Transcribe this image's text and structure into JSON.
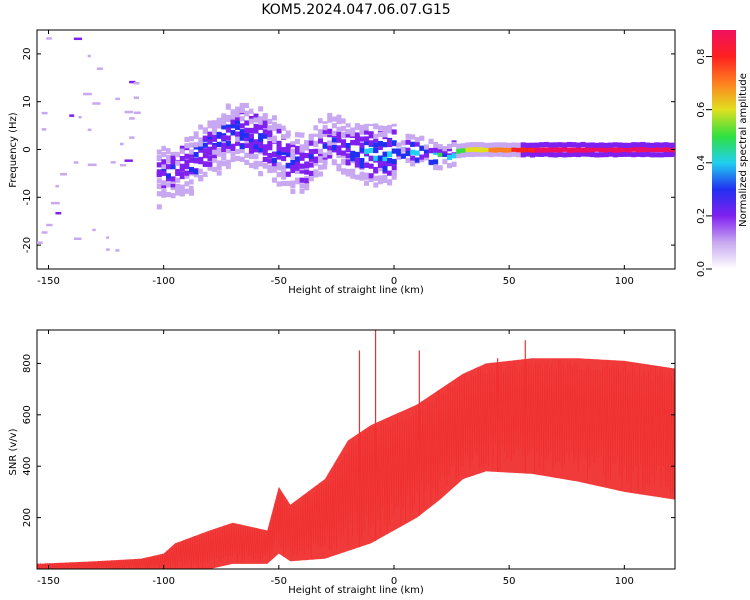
{
  "figure_title": "KOM5.2024.047.06.07.G15",
  "colors": {
    "snr_line": "#f03030",
    "spectro_light": "#c8a8f0",
    "spectro_purple": "#8020f0",
    "spectro_blue": "#2030f0",
    "spectro_cyan": "#20d0f0",
    "spectro_green": "#30e040",
    "spectro_yellow": "#e0e020",
    "spectro_red": "#ff2020"
  },
  "chart_data": [
    {
      "type": "heatmap",
      "xlabel": "Height of straight line (km)",
      "ylabel": "Frequency (Hz)",
      "xlim": [
        -155,
        122
      ],
      "ylim": [
        -25,
        25
      ],
      "xticks": [
        -150,
        -100,
        -50,
        0,
        50,
        100
      ],
      "yticks": [
        -20,
        -10,
        0,
        10,
        20
      ],
      "grid": false,
      "colorbar": {
        "label": "Normalized spectral amplitude",
        "range": [
          0,
          0.9
        ],
        "ticks": [
          0.0,
          0.2,
          0.4,
          0.6,
          0.8
        ],
        "colormap": [
          "#ffffff",
          "#c8a8f0",
          "#8020f0",
          "#2030f0",
          "#20d0f0",
          "#30e040",
          "#e0e020",
          "#ff8020",
          "#ff2020",
          "#f01060"
        ]
      },
      "ridge": [
        {
          "x": -100,
          "y": -5,
          "amp": 0.25
        },
        {
          "x": -90,
          "y": -3,
          "amp": 0.3
        },
        {
          "x": -80,
          "y": 1,
          "amp": 0.3
        },
        {
          "x": -70,
          "y": 4,
          "amp": 0.3
        },
        {
          "x": -60,
          "y": 2,
          "amp": 0.35
        },
        {
          "x": -50,
          "y": -1,
          "amp": 0.3
        },
        {
          "x": -40,
          "y": -3,
          "amp": 0.25
        },
        {
          "x": -30,
          "y": 2,
          "amp": 0.25
        },
        {
          "x": -20,
          "y": 0,
          "amp": 0.3
        },
        {
          "x": -5,
          "y": -1,
          "amp": 0.4
        },
        {
          "x": 5,
          "y": 0,
          "amp": 0.45
        },
        {
          "x": 20,
          "y": -1,
          "amp": 0.5
        },
        {
          "x": 30,
          "y": 0,
          "amp": 0.55
        },
        {
          "x": 45,
          "y": 0,
          "amp": 0.7
        },
        {
          "x": 60,
          "y": 0,
          "amp": 0.85
        },
        {
          "x": 80,
          "y": 0,
          "amp": 0.9
        },
        {
          "x": 100,
          "y": 0,
          "amp": 0.9
        },
        {
          "x": 122,
          "y": 0,
          "amp": 0.85
        }
      ]
    },
    {
      "type": "area",
      "xlabel": "Height of straight line (km)",
      "ylabel": "SNR (v/v)",
      "xlim": [
        -155,
        122
      ],
      "ylim": [
        0,
        930
      ],
      "xticks": [
        -150,
        -100,
        -50,
        0,
        50,
        100
      ],
      "yticks": [
        200,
        400,
        600,
        800
      ],
      "grid": false,
      "series": [
        {
          "envelope_x": [
            -155,
            -130,
            -110,
            -100,
            -95,
            -80,
            -70,
            -55,
            -50,
            -45,
            -30,
            -20,
            -10,
            0,
            10,
            20,
            30,
            40,
            60,
            80,
            100,
            122
          ],
          "lower": [
            0,
            0,
            0,
            0,
            0,
            0,
            20,
            20,
            60,
            30,
            40,
            70,
            100,
            150,
            200,
            270,
            350,
            380,
            370,
            340,
            300,
            270
          ],
          "upper": [
            20,
            30,
            40,
            60,
            100,
            150,
            180,
            150,
            320,
            250,
            350,
            500,
            560,
            600,
            640,
            700,
            760,
            800,
            820,
            820,
            810,
            780
          ],
          "spikes": [
            {
              "x": -15,
              "y": 850
            },
            {
              "x": -8,
              "y": 930
            },
            {
              "x": 11,
              "y": 850
            },
            {
              "x": 45,
              "y": 820
            },
            {
              "x": 57,
              "y": 890
            }
          ]
        }
      ]
    }
  ]
}
